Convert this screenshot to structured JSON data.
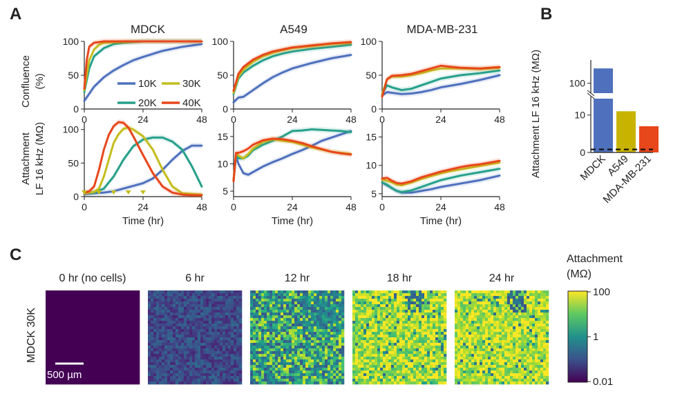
{
  "panel_labels": {
    "a": "A",
    "b": "B",
    "c": "C"
  },
  "colors": {
    "10K": "#4e70bd",
    "20K": "#26a08a",
    "30K": "#c3bd1d",
    "40K": "#e8461b",
    "bar_MDCK": "#4e70bd",
    "bar_A549": "#c8b400",
    "bar_MDA": "#e8461b",
    "arrow": "#c3bd1d"
  },
  "panel_a": {
    "column_titles": [
      "MDCK",
      "A549",
      "MDA-MB-231"
    ],
    "row_labels": {
      "confluence": [
        "Confluence",
        "(%)"
      ],
      "attachment": [
        "Attachment",
        "LF 16 kHz (MΩ)"
      ]
    },
    "xlabel": "Time (hr)",
    "x_ticks": [
      "0",
      "24",
      "48"
    ],
    "legend": [
      "10K",
      "30K",
      "20K",
      "40K"
    ],
    "conf_y_ticks": [
      "0",
      "50",
      "100"
    ],
    "mdck_att_y_ticks": [
      "0",
      "50",
      "100"
    ],
    "other_att_y_ticks": [
      "5",
      "10",
      "15"
    ]
  },
  "chart_data": [
    {
      "type": "line",
      "title": "MDCK",
      "ylabel": "Confluence (%)",
      "xlabel": "",
      "xlim": [
        0,
        48
      ],
      "ylim": [
        0,
        100
      ],
      "series": [
        {
          "name": "10K",
          "x": [
            0,
            4,
            8,
            12,
            16,
            20,
            24,
            32,
            40,
            48
          ],
          "values": [
            12,
            33,
            47,
            57,
            65,
            72,
            77,
            86,
            92,
            96
          ]
        },
        {
          "name": "20K",
          "x": [
            0,
            2,
            4,
            8,
            12,
            16,
            20,
            24,
            48
          ],
          "values": [
            25,
            60,
            78,
            90,
            96,
            98,
            99,
            100,
            100
          ]
        },
        {
          "name": "30K",
          "x": [
            0,
            2,
            4,
            6,
            8,
            12,
            24,
            48
          ],
          "values": [
            28,
            72,
            88,
            95,
            98,
            99,
            100,
            100
          ]
        },
        {
          "name": "40K",
          "x": [
            0,
            1,
            2,
            4,
            6,
            8,
            24,
            48
          ],
          "values": [
            30,
            72,
            92,
            98,
            99,
            100,
            100,
            100
          ]
        }
      ]
    },
    {
      "type": "line",
      "title": "A549",
      "xlim": [
        0,
        48
      ],
      "ylim": [
        0,
        100
      ],
      "series": [
        {
          "name": "10K",
          "x": [
            0,
            2,
            4,
            8,
            12,
            16,
            20,
            24,
            32,
            40,
            48
          ],
          "values": [
            10,
            17,
            18,
            28,
            38,
            47,
            54,
            60,
            68,
            75,
            80
          ]
        },
        {
          "name": "20K",
          "x": [
            0,
            2,
            4,
            8,
            12,
            16,
            20,
            24,
            32,
            40,
            48
          ],
          "values": [
            22,
            45,
            54,
            64,
            72,
            78,
            82,
            85,
            89,
            92,
            95
          ]
        },
        {
          "name": "30K",
          "x": [
            0,
            2,
            4,
            8,
            12,
            16,
            20,
            24,
            32,
            40,
            48
          ],
          "values": [
            24,
            48,
            58,
            70,
            78,
            83,
            87,
            90,
            93,
            96,
            98
          ]
        },
        {
          "name": "40K",
          "x": [
            0,
            2,
            4,
            8,
            12,
            16,
            20,
            24,
            32,
            40,
            48
          ],
          "values": [
            27,
            52,
            62,
            73,
            80,
            85,
            88,
            91,
            94,
            97,
            99
          ]
        }
      ]
    },
    {
      "type": "line",
      "title": "MDA-MB-231",
      "xlim": [
        0,
        48
      ],
      "ylim": [
        0,
        100
      ],
      "series": [
        {
          "name": "10K",
          "x": [
            0,
            2,
            4,
            8,
            12,
            16,
            20,
            24,
            32,
            40,
            48
          ],
          "values": [
            20,
            25,
            24,
            22,
            23,
            25,
            28,
            32,
            37,
            43,
            50
          ]
        },
        {
          "name": "20K",
          "x": [
            0,
            2,
            4,
            8,
            12,
            16,
            20,
            24,
            32,
            40,
            48
          ],
          "values": [
            22,
            35,
            32,
            28,
            30,
            35,
            40,
            45,
            50,
            53,
            57
          ]
        },
        {
          "name": "30K",
          "x": [
            0,
            2,
            4,
            8,
            12,
            16,
            20,
            24,
            32,
            40,
            48
          ],
          "values": [
            22,
            44,
            48,
            48,
            50,
            53,
            57,
            60,
            60,
            59,
            61
          ]
        },
        {
          "name": "40K",
          "x": [
            0,
            2,
            4,
            8,
            12,
            16,
            20,
            24,
            32,
            40,
            48
          ],
          "values": [
            18,
            44,
            49,
            50,
            52,
            56,
            60,
            64,
            61,
            60,
            62
          ]
        }
      ]
    },
    {
      "type": "line",
      "title": "MDCK",
      "ylabel": "Attachment LF 16 kHz (MΩ)",
      "xlabel": "Time (hr)",
      "xlim": [
        0,
        48
      ],
      "ylim": [
        0,
        110
      ],
      "series": [
        {
          "name": "10K",
          "x": [
            0,
            4,
            8,
            12,
            16,
            20,
            24,
            28,
            32,
            36,
            40,
            44,
            48
          ],
          "values": [
            4,
            5,
            6,
            8,
            12,
            16,
            20,
            27,
            40,
            55,
            68,
            76,
            76
          ]
        },
        {
          "name": "20K",
          "x": [
            0,
            4,
            8,
            12,
            16,
            20,
            24,
            28,
            32,
            36,
            40,
            44,
            48
          ],
          "values": [
            5,
            6,
            12,
            30,
            55,
            75,
            85,
            88,
            88,
            82,
            70,
            45,
            15
          ]
        },
        {
          "name": "30K",
          "x": [
            0,
            4,
            6,
            8,
            10,
            12,
            14,
            16,
            18,
            20,
            24,
            28,
            32,
            36,
            40,
            44,
            48
          ],
          "values": [
            5,
            7,
            12,
            30,
            55,
            80,
            93,
            101,
            103,
            100,
            90,
            70,
            40,
            15,
            5,
            4,
            3
          ]
        },
        {
          "name": "40K",
          "x": [
            0,
            2,
            4,
            6,
            8,
            10,
            12,
            14,
            16,
            18,
            20,
            24,
            28,
            32,
            36,
            40,
            44,
            48
          ],
          "values": [
            6,
            8,
            15,
            40,
            70,
            92,
            105,
            111,
            110,
            103,
            90,
            62,
            35,
            15,
            6,
            3,
            2,
            2
          ]
        }
      ]
    },
    {
      "type": "line",
      "title": "A549",
      "xlabel": "Time (hr)",
      "xlim": [
        0,
        48
      ],
      "ylim": [
        4,
        17.5
      ],
      "series": [
        {
          "name": "10K",
          "x": [
            0,
            1,
            2,
            4,
            6,
            8,
            12,
            16,
            20,
            24,
            28,
            32,
            36,
            40,
            44,
            48
          ],
          "values": [
            7,
            11.3,
            10,
            8.3,
            8.0,
            8.5,
            9.5,
            10.3,
            11,
            11.8,
            12.5,
            13.3,
            14.2,
            14.8,
            15.4,
            16
          ]
        },
        {
          "name": "20K",
          "x": [
            0,
            1,
            2,
            4,
            6,
            8,
            12,
            16,
            20,
            24,
            28,
            32,
            36,
            40,
            44,
            48
          ],
          "values": [
            7,
            11.5,
            11,
            11,
            11.5,
            12.5,
            13.5,
            14.2,
            15,
            16,
            16.1,
            16.3,
            16.2,
            16.1,
            16,
            15.8
          ]
        },
        {
          "name": "30K",
          "x": [
            0,
            1,
            2,
            4,
            6,
            8,
            12,
            16,
            20,
            24,
            28,
            32,
            36,
            40,
            44,
            48
          ],
          "values": [
            7,
            12,
            11.5,
            11,
            11.8,
            12.8,
            14,
            14.5,
            14.2,
            14,
            13.5,
            13,
            12.6,
            12.2,
            12,
            11.8
          ]
        },
        {
          "name": "40K",
          "x": [
            0,
            1,
            2,
            4,
            6,
            8,
            12,
            16,
            20,
            24,
            28,
            32,
            36,
            40,
            44,
            48
          ],
          "values": [
            6.8,
            12,
            12,
            12.3,
            12.8,
            13.5,
            14.3,
            14.6,
            14.5,
            14.2,
            13.8,
            13.2,
            12.7,
            12.2,
            11.9,
            11.7
          ]
        }
      ]
    },
    {
      "type": "line",
      "title": "MDA-MB-231",
      "xlabel": "Time (hr)",
      "xlim": [
        0,
        48
      ],
      "ylim": [
        4.5,
        17.5
      ],
      "series": [
        {
          "name": "10K",
          "x": [
            0,
            2,
            4,
            6,
            8,
            12,
            16,
            20,
            24,
            28,
            32,
            36,
            40,
            44,
            48
          ],
          "values": [
            7,
            6.5,
            6.0,
            5.5,
            5.2,
            5.2,
            5.5,
            5.8,
            6.2,
            6.5,
            6.8,
            7.1,
            7.4,
            7.8,
            8.2
          ]
        },
        {
          "name": "20K",
          "x": [
            0,
            2,
            4,
            6,
            8,
            12,
            16,
            20,
            24,
            28,
            32,
            36,
            40,
            44,
            48
          ],
          "values": [
            7,
            6.6,
            6.0,
            5.5,
            5.3,
            5.6,
            6.2,
            6.8,
            7.4,
            7.8,
            8.2,
            8.5,
            8.8,
            9.1,
            9.4
          ]
        },
        {
          "name": "30K",
          "x": [
            0,
            2,
            4,
            6,
            8,
            12,
            16,
            20,
            24,
            28,
            32,
            36,
            40,
            44,
            48
          ],
          "values": [
            7.5,
            7.3,
            7.0,
            6.6,
            6.5,
            7.0,
            7.6,
            8.1,
            8.6,
            9.0,
            9.3,
            9.6,
            9.9,
            10.2,
            10.5
          ]
        },
        {
          "name": "40K",
          "x": [
            0,
            2,
            4,
            6,
            8,
            12,
            16,
            20,
            24,
            28,
            32,
            36,
            40,
            44,
            48
          ],
          "values": [
            7.7,
            7.8,
            7.3,
            6.9,
            6.8,
            7.2,
            7.9,
            8.4,
            8.9,
            9.3,
            9.7,
            10.0,
            10.2,
            10.5,
            10.8
          ]
        }
      ]
    },
    {
      "type": "bar",
      "ylabel": "Attachment LF 16 kHz (MΩ)",
      "categories": [
        "MDCK",
        "A549",
        "MDA-MB-231"
      ],
      "values": [
        130,
        11,
        7
      ],
      "y_ticks": [
        "0",
        "10",
        "100"
      ],
      "broken_axis": true,
      "reference_line": 0.8
    },
    {
      "type": "heatmap",
      "row_label": "MDCK 30K",
      "panels": [
        "0 hr (no cells)",
        "6 hr",
        "12 hr",
        "18 hr",
        "24 hr"
      ],
      "scale_bar": "500 µm",
      "colorbar_title": [
        "Attachment",
        "(MΩ)"
      ],
      "colorbar_ticks": [
        "100",
        "1",
        "0.01"
      ],
      "colorbar_scale": "log"
    }
  ]
}
